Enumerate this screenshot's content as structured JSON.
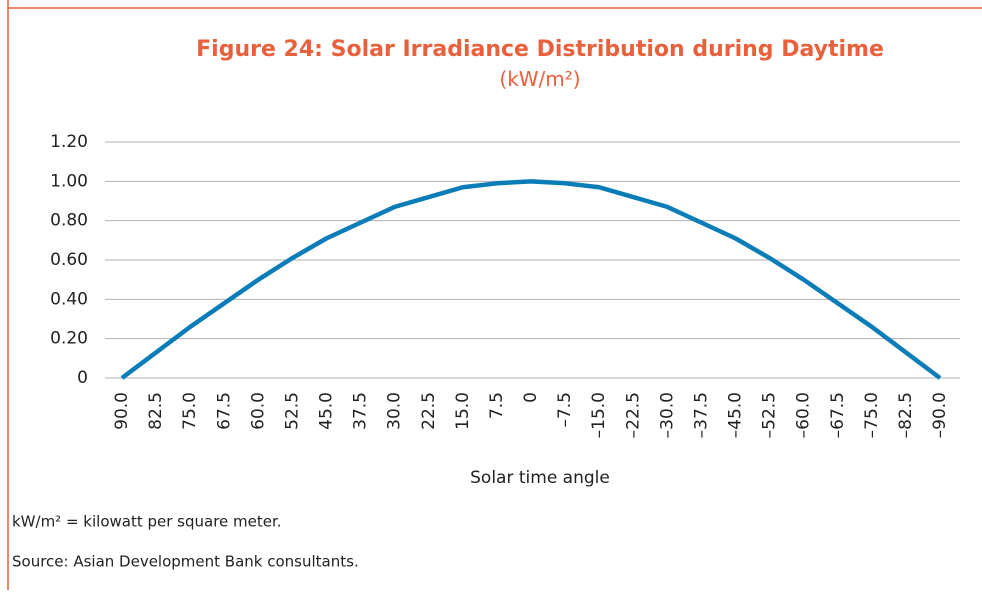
{
  "chart_data": {
    "type": "line",
    "title": "Figure 24: Solar Irradiance Distribution during Daytime",
    "subtitle": "(kW/m²)",
    "x_label": "Solar time angle",
    "categories": [
      "90.0",
      "82.5",
      "75.0",
      "67.5",
      "60.0",
      "52.5",
      "45.0",
      "37.5",
      "30.0",
      "22.5",
      "15.0",
      "7.5",
      "0",
      "–7.5",
      "–15.0",
      "–22.5",
      "–30.0",
      "–37.5",
      "–45.0",
      "–52.5",
      "–60.0",
      "–67.5",
      "–75.0",
      "–82.5",
      "–90.0"
    ],
    "series": [
      {
        "name": "Solar irradiance",
        "color": "#0a7db8",
        "values": [
          0,
          0.13,
          0.26,
          0.38,
          0.5,
          0.61,
          0.71,
          0.79,
          0.87,
          0.92,
          0.97,
          0.99,
          1.0,
          0.99,
          0.97,
          0.92,
          0.87,
          0.79,
          0.71,
          0.61,
          0.5,
          0.38,
          0.26,
          0.13,
          0
        ]
      }
    ],
    "ylim": [
      0,
      1.2
    ],
    "yticks": [
      0,
      {
        "value": 0.2,
        "label": "0.20"
      },
      {
        "value": 0.4,
        "label": "0.40"
      },
      {
        "value": 0.6,
        "label": "0.60"
      },
      {
        "value": 0.8,
        "label": "0.80"
      },
      {
        "value": 1.0,
        "label": "1.00"
      },
      {
        "value": 1.2,
        "label": "1.20"
      }
    ],
    "grid": true,
    "notes": [
      "kW/m² = kilowatt per square meter.",
      "Source: Asian Development Bank consultants."
    ]
  }
}
